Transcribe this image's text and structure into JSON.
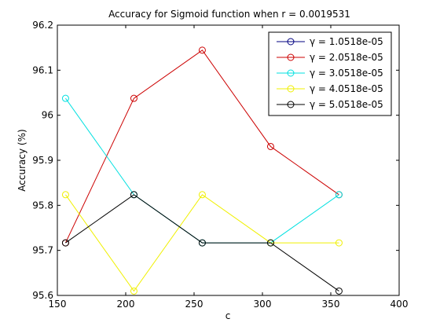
{
  "chart_data": {
    "type": "line",
    "title": "Accuracy for Sigmoid function when r = 0.0019531",
    "xlabel": "c",
    "ylabel": "Accuracy (%)",
    "xlim": [
      150,
      400
    ],
    "ylim": [
      95.6,
      96.2
    ],
    "x_ticks": [
      "150",
      "200",
      "250",
      "300",
      "350",
      "400"
    ],
    "y_ticks": [
      "95.6",
      "95.7",
      "95.8",
      "95.9",
      "96",
      "96.1",
      "96.2"
    ],
    "grid": false,
    "legend_position": "top-right",
    "x": [
      156,
      206,
      256,
      306,
      356
    ],
    "series": [
      {
        "name": "γ = 1.0518e-05",
        "color": "#000080",
        "values": [
          null,
          null,
          null,
          null,
          null
        ]
      },
      {
        "name": "γ = 2.0518e-05",
        "color": "#cc0000",
        "values": [
          95.7167,
          96.0375,
          96.1444,
          95.9306,
          95.8236
        ]
      },
      {
        "name": "γ = 3.0518e-05",
        "color": "#00e0e0",
        "values": [
          96.0375,
          95.8236,
          95.7167,
          95.7167,
          95.8236
        ]
      },
      {
        "name": "γ = 4.0518e-05",
        "color": "#f0f000",
        "values": [
          95.8236,
          95.6097,
          95.8236,
          95.7167,
          95.7167
        ]
      },
      {
        "name": "γ = 5.0518e-05",
        "color": "#000000",
        "values": [
          95.7167,
          95.8236,
          95.7167,
          95.7167,
          95.6097
        ]
      }
    ]
  }
}
